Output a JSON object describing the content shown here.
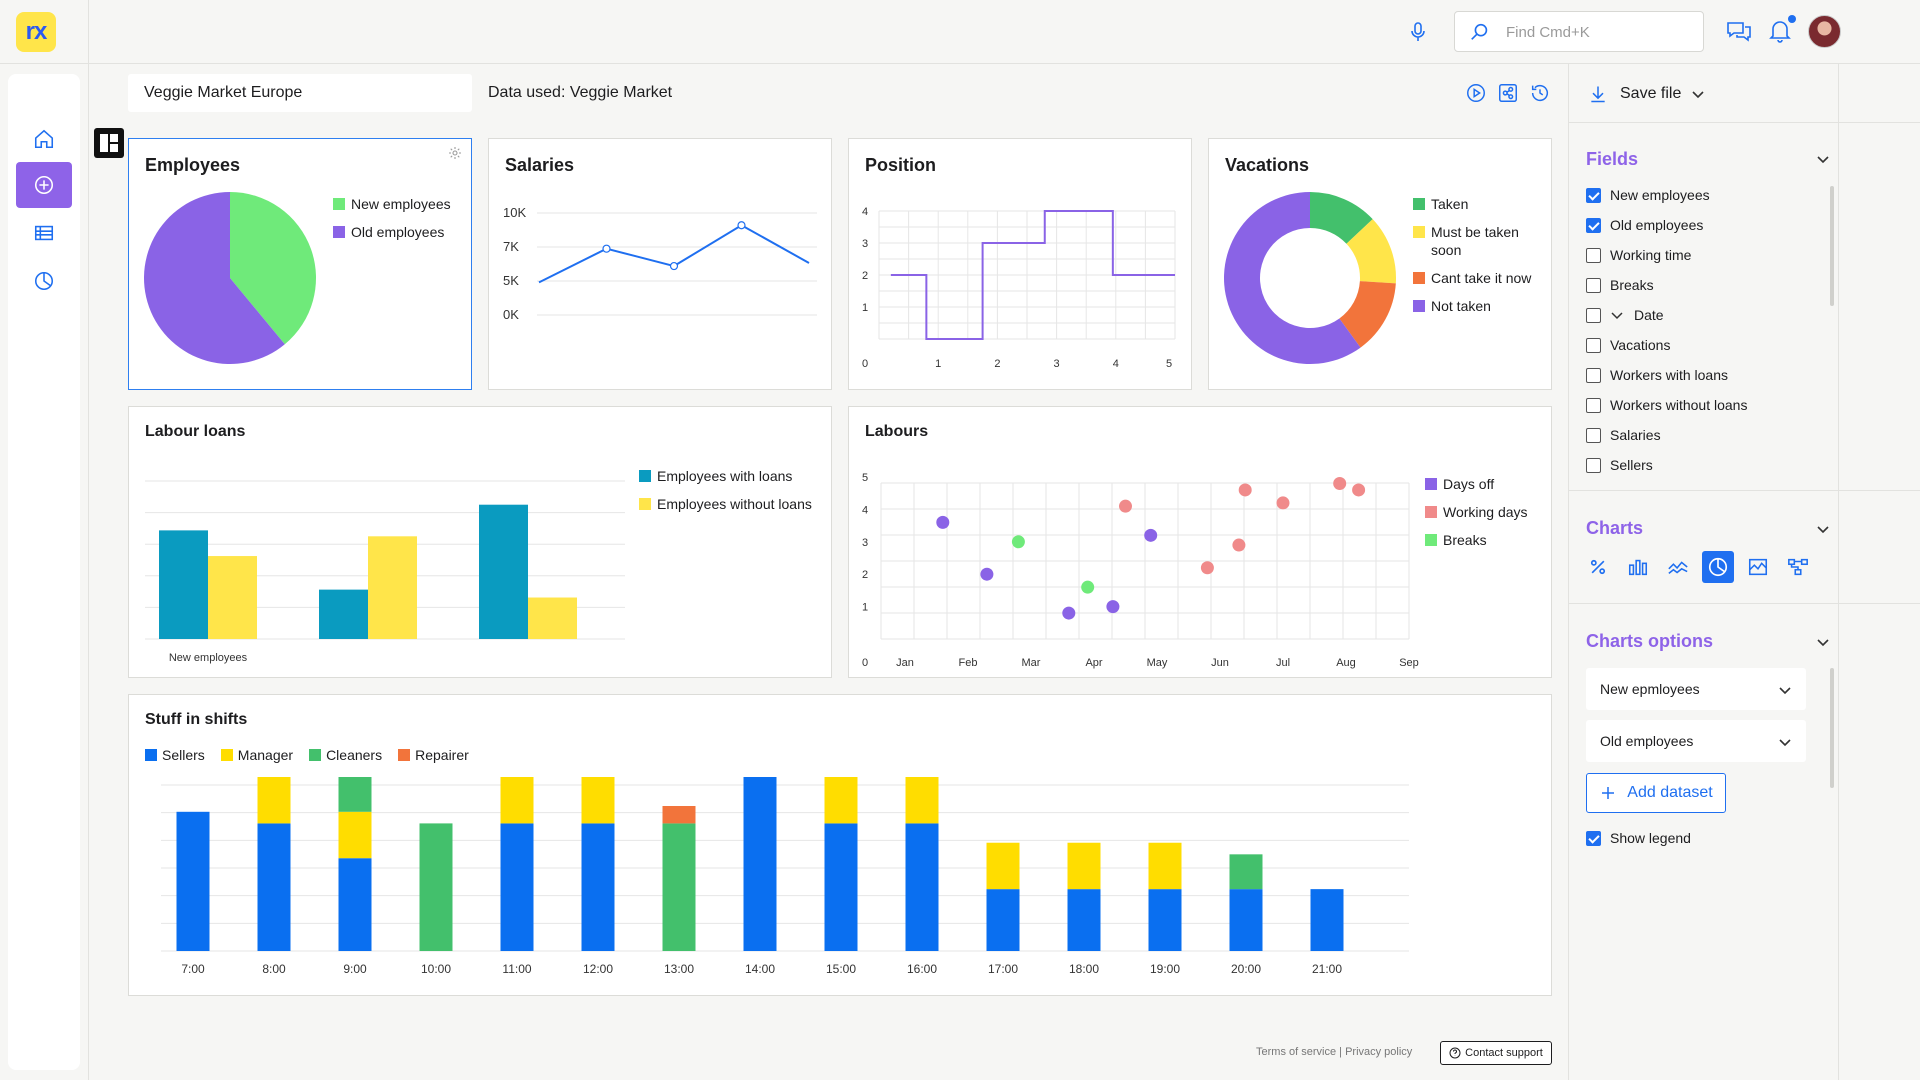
{
  "app": {
    "logo_text": "rx"
  },
  "header": {
    "search_placeholder": "Find Cmd+K",
    "icons": [
      "microphone-icon",
      "search-icon",
      "chat-icon",
      "bell-icon"
    ],
    "notification_dot_color": "#1f6ff0"
  },
  "subheader": {
    "dashboard_name": "Veggie Market Europe",
    "data_used": "Data used: Veggie Market"
  },
  "nav": {
    "items": [
      "home",
      "add",
      "table",
      "charts"
    ],
    "active": "add",
    "accent": "#8e63e8"
  },
  "cards": {
    "employees": {
      "title": "Employees",
      "legend": [
        {
          "label": "New employees",
          "color": "#6fea7a"
        },
        {
          "label": "Old employees",
          "color": "#8a63e6"
        }
      ]
    },
    "salaries": {
      "title": "Salaries"
    },
    "position": {
      "title": "Position"
    },
    "vacations": {
      "title": "Vacations",
      "legend": [
        {
          "label": "Taken",
          "color": "#43c06c"
        },
        {
          "label": "Must be taken soon",
          "color": "#ffe54a"
        },
        {
          "label": "Cant take it now",
          "color": "#f2743b"
        },
        {
          "label": "Not taken",
          "color": "#8a63e6"
        }
      ]
    },
    "labour_loans": {
      "title": "Labour loans",
      "legend": [
        {
          "label": "Employees with loans",
          "color": "#0a9bc0"
        },
        {
          "label": "Employees without loans",
          "color": "#ffe54a"
        }
      ]
    },
    "labours": {
      "title": "Labours",
      "legend": [
        {
          "label": "Days off",
          "color": "#8a63e6"
        },
        {
          "label": "Working days",
          "color": "#f08a8a"
        },
        {
          "label": "Breaks",
          "color": "#6fea7a"
        }
      ]
    },
    "shifts": {
      "title": "Stuff in shifts",
      "legend": [
        {
          "label": "Sellers",
          "color": "#0a6ff0"
        },
        {
          "label": "Manager",
          "color": "#ffdd00"
        },
        {
          "label": "Cleaners",
          "color": "#43c06c"
        },
        {
          "label": "Repairer",
          "color": "#f2743b"
        }
      ]
    }
  },
  "chart_data": [
    {
      "type": "pie",
      "title": "Employees",
      "series": [
        {
          "name": "New employees",
          "value": 39
        },
        {
          "name": "Old employees",
          "value": 61
        }
      ]
    },
    {
      "type": "line",
      "title": "Salaries",
      "yticks": [
        "10K",
        "7K",
        "5K",
        "0K"
      ],
      "ylim": [
        0,
        10
      ],
      "values": [
        3.2,
        6.5,
        4.8,
        8.8,
        5.1
      ]
    },
    {
      "type": "line",
      "title": "Position",
      "step": true,
      "xlim": [
        0,
        5
      ],
      "ylim": [
        0,
        4
      ],
      "xticks": [
        "0",
        "1",
        "2",
        "3",
        "4",
        "5"
      ],
      "yticks": [
        "1",
        "2",
        "3",
        "4"
      ],
      "points": [
        [
          0.2,
          2
        ],
        [
          0.8,
          2
        ],
        [
          0.8,
          0
        ],
        [
          1.75,
          0
        ],
        [
          1.75,
          3
        ],
        [
          2.8,
          3
        ],
        [
          2.8,
          4
        ],
        [
          3.95,
          4
        ],
        [
          3.95,
          2
        ],
        [
          5,
          2
        ]
      ]
    },
    {
      "type": "pie",
      "donut": true,
      "title": "Vacations",
      "series": [
        {
          "name": "Taken",
          "value": 13
        },
        {
          "name": "Must be taken soon",
          "value": 13
        },
        {
          "name": "Cant take it now",
          "value": 14
        },
        {
          "name": "Not taken",
          "value": 60
        }
      ]
    },
    {
      "type": "bar",
      "title": "Labour loans",
      "categories": [
        "New employees",
        "",
        ""
      ],
      "series": [
        {
          "name": "Employees with loans",
          "values": [
            55,
            25,
            68
          ]
        },
        {
          "name": "Employees without loans",
          "values": [
            42,
            52,
            21
          ]
        }
      ],
      "ylim": [
        0,
        80
      ]
    },
    {
      "type": "scatter",
      "title": "Labours",
      "xticks": [
        "Jan",
        "Feb",
        "Mar",
        "Apr",
        "May",
        "Jun",
        "Jul",
        "Aug",
        "Sep"
      ],
      "yticks": [
        "0",
        "1",
        "2",
        "3",
        "4",
        "5"
      ],
      "xlim": [
        0,
        8
      ],
      "ylim": [
        0,
        5
      ],
      "series": [
        {
          "name": "Days off",
          "points": [
            [
              0.6,
              3.6
            ],
            [
              1.3,
              2.0
            ],
            [
              2.6,
              0.8
            ],
            [
              3.3,
              1.0
            ],
            [
              3.9,
              3.2
            ]
          ]
        },
        {
          "name": "Working days",
          "points": [
            [
              3.5,
              4.1
            ],
            [
              4.8,
              2.2
            ],
            [
              5.4,
              4.6
            ],
            [
              5.3,
              2.9
            ],
            [
              6.0,
              4.2
            ],
            [
              6.9,
              4.8
            ],
            [
              7.2,
              4.6
            ]
          ]
        },
        {
          "name": "Breaks",
          "points": [
            [
              1.8,
              3.0
            ],
            [
              2.9,
              1.6
            ]
          ]
        }
      ]
    },
    {
      "type": "bar",
      "stacked": true,
      "title": "Stuff in shifts",
      "categories": [
        "7:00",
        "8:00",
        "9:00",
        "10:00",
        "11:00",
        "12:00",
        "13:00",
        "14:00",
        "15:00",
        "16:00",
        "17:00",
        "18:00",
        "19:00",
        "20:00",
        "21:00"
      ],
      "series": [
        {
          "name": "Sellers",
          "values": [
            3.6,
            3.3,
            2.4,
            0,
            3.3,
            3.3,
            0,
            4.5,
            3.3,
            3.3,
            1.6,
            1.6,
            1.6,
            1.6,
            1.6
          ]
        },
        {
          "name": "Manager",
          "values": [
            0,
            1.2,
            1.2,
            0,
            1.2,
            1.2,
            0,
            0,
            1.2,
            1.2,
            1.2,
            1.2,
            1.2,
            0,
            0
          ]
        },
        {
          "name": "Cleaners",
          "values": [
            0,
            0,
            0.9,
            3.3,
            0,
            0,
            3.3,
            0,
            0,
            0,
            0,
            0,
            0,
            0.9,
            0
          ]
        },
        {
          "name": "Repairer",
          "values": [
            0,
            0,
            0,
            0,
            0,
            0,
            0.45,
            0,
            0,
            0,
            0,
            0,
            0,
            0,
            0
          ]
        }
      ],
      "ylim": [
        0,
        4.5
      ]
    }
  ],
  "right_panel": {
    "save_label": "Save file",
    "fields_title": "Fields",
    "fields": [
      {
        "label": "New employees",
        "checked": true
      },
      {
        "label": "Old employees",
        "checked": true
      },
      {
        "label": "Working time",
        "checked": false
      },
      {
        "label": "Breaks",
        "checked": false
      },
      {
        "label": "Date",
        "checked": false,
        "expandable": true
      },
      {
        "label": "Vacations",
        "checked": false
      },
      {
        "label": "Workers with loans",
        "checked": false
      },
      {
        "label": "Workers without loans",
        "checked": false
      },
      {
        "label": "Salaries",
        "checked": false
      },
      {
        "label": "Sellers",
        "checked": false
      }
    ],
    "charts_title": "Charts",
    "chart_types": [
      "percent-icon",
      "bar-chart-icon",
      "line-chart-icon",
      "pie-chart-icon",
      "area-chart-icon",
      "flow-chart-icon"
    ],
    "chart_type_active": "pie-chart-icon",
    "options_title": "Charts options",
    "select_1": "New epmloyees",
    "select_2": "Old employees",
    "add_dataset": "Add dataset",
    "show_legend_label": "Show legend",
    "show_legend": true
  },
  "footer": {
    "terms": "Terms of service",
    "divider": "|",
    "privacy": "Privacy policy",
    "support": "Contact support"
  }
}
